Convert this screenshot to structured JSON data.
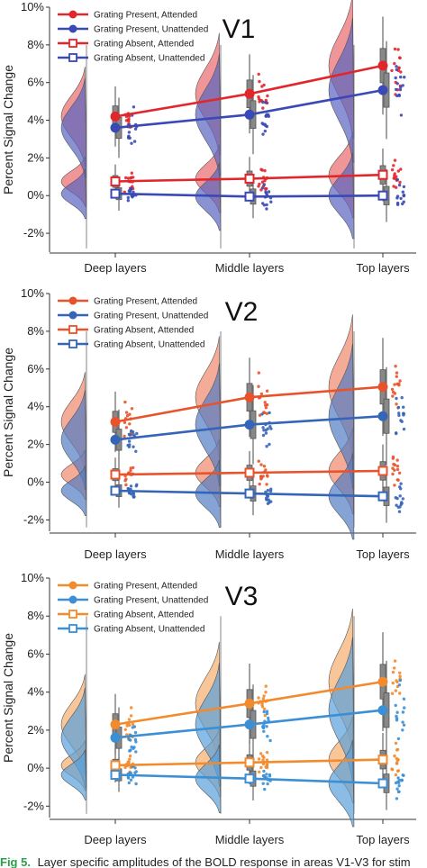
{
  "caption": {
    "label": "Fig 5.",
    "text": "Layer specific amplitudes of the BOLD response in areas V1-V3 for stim"
  },
  "chart_data": [
    {
      "type": "line",
      "title": "V1",
      "ylabel": "Percent Signal Change",
      "ylim": [
        -3,
        10
      ],
      "yticks": [
        -2,
        0,
        2,
        4,
        6,
        8,
        10
      ],
      "ytick_labels": [
        "-2%",
        "0%",
        "2%",
        "4%",
        "6%",
        "8%",
        "10%"
      ],
      "categories": [
        "Deep layers",
        "Middle layers",
        "Top layers"
      ],
      "legend_position": "top-left",
      "series": [
        {
          "name": "Grating Present, Attended",
          "values": [
            4.2,
            5.4,
            6.9
          ],
          "color": "#e2272c",
          "marker": "circle"
        },
        {
          "name": "Grating Present, Unattended",
          "values": [
            3.6,
            4.3,
            5.6
          ],
          "color": "#3a49b5",
          "marker": "circle"
        },
        {
          "name": "Grating Absent, Attended",
          "values": [
            0.75,
            0.9,
            1.1
          ],
          "color": "#e2272c",
          "marker": "square"
        },
        {
          "name": "Grating Absent, Unattended",
          "values": [
            0.1,
            -0.05,
            0.0
          ],
          "color": "#3a49b5",
          "marker": "square"
        }
      ]
    },
    {
      "type": "line",
      "title": "V2",
      "ylabel": "Percent Signal Change",
      "ylim": [
        -2.6,
        10
      ],
      "yticks": [
        -2,
        0,
        2,
        4,
        6,
        8,
        10
      ],
      "ytick_labels": [
        "-2%",
        "0%",
        "2%",
        "4%",
        "6%",
        "8%",
        "10%"
      ],
      "categories": [
        "Deep layers",
        "Middle layers",
        "Top layers"
      ],
      "legend_position": "top-left",
      "series": [
        {
          "name": "Grating Present, Attended",
          "values": [
            3.2,
            4.5,
            5.05
          ],
          "color": "#e8532b",
          "marker": "circle"
        },
        {
          "name": "Grating Present, Unattended",
          "values": [
            2.25,
            3.05,
            3.5
          ],
          "color": "#3565b8",
          "marker": "circle"
        },
        {
          "name": "Grating Absent, Attended",
          "values": [
            0.4,
            0.5,
            0.6
          ],
          "color": "#e8532b",
          "marker": "square"
        },
        {
          "name": "Grating Absent, Unattended",
          "values": [
            -0.45,
            -0.6,
            -0.75
          ],
          "color": "#3565b8",
          "marker": "square"
        }
      ]
    },
    {
      "type": "line",
      "title": "V3",
      "ylabel": "Percent Signal Change",
      "ylim": [
        -2.6,
        10
      ],
      "yticks": [
        -2,
        0,
        2,
        4,
        6,
        8,
        10
      ],
      "ytick_labels": [
        "-2%",
        "0%",
        "2%",
        "4%",
        "6%",
        "8%",
        "10%"
      ],
      "categories": [
        "Deep layers",
        "Middle layers",
        "Top layers"
      ],
      "legend_position": "top-left",
      "series": [
        {
          "name": "Grating Present, Attended",
          "values": [
            2.3,
            3.4,
            4.55
          ],
          "color": "#f28a2e",
          "marker": "circle"
        },
        {
          "name": "Grating Present, Unattended",
          "values": [
            1.6,
            2.3,
            3.05
          ],
          "color": "#3b8fd4",
          "marker": "circle"
        },
        {
          "name": "Grating Absent, Attended",
          "values": [
            0.15,
            0.3,
            0.45
          ],
          "color": "#f28a2e",
          "marker": "square"
        },
        {
          "name": "Grating Absent, Unattended",
          "values": [
            -0.35,
            -0.55,
            -0.8
          ],
          "color": "#3b8fd4",
          "marker": "square"
        }
      ]
    }
  ]
}
